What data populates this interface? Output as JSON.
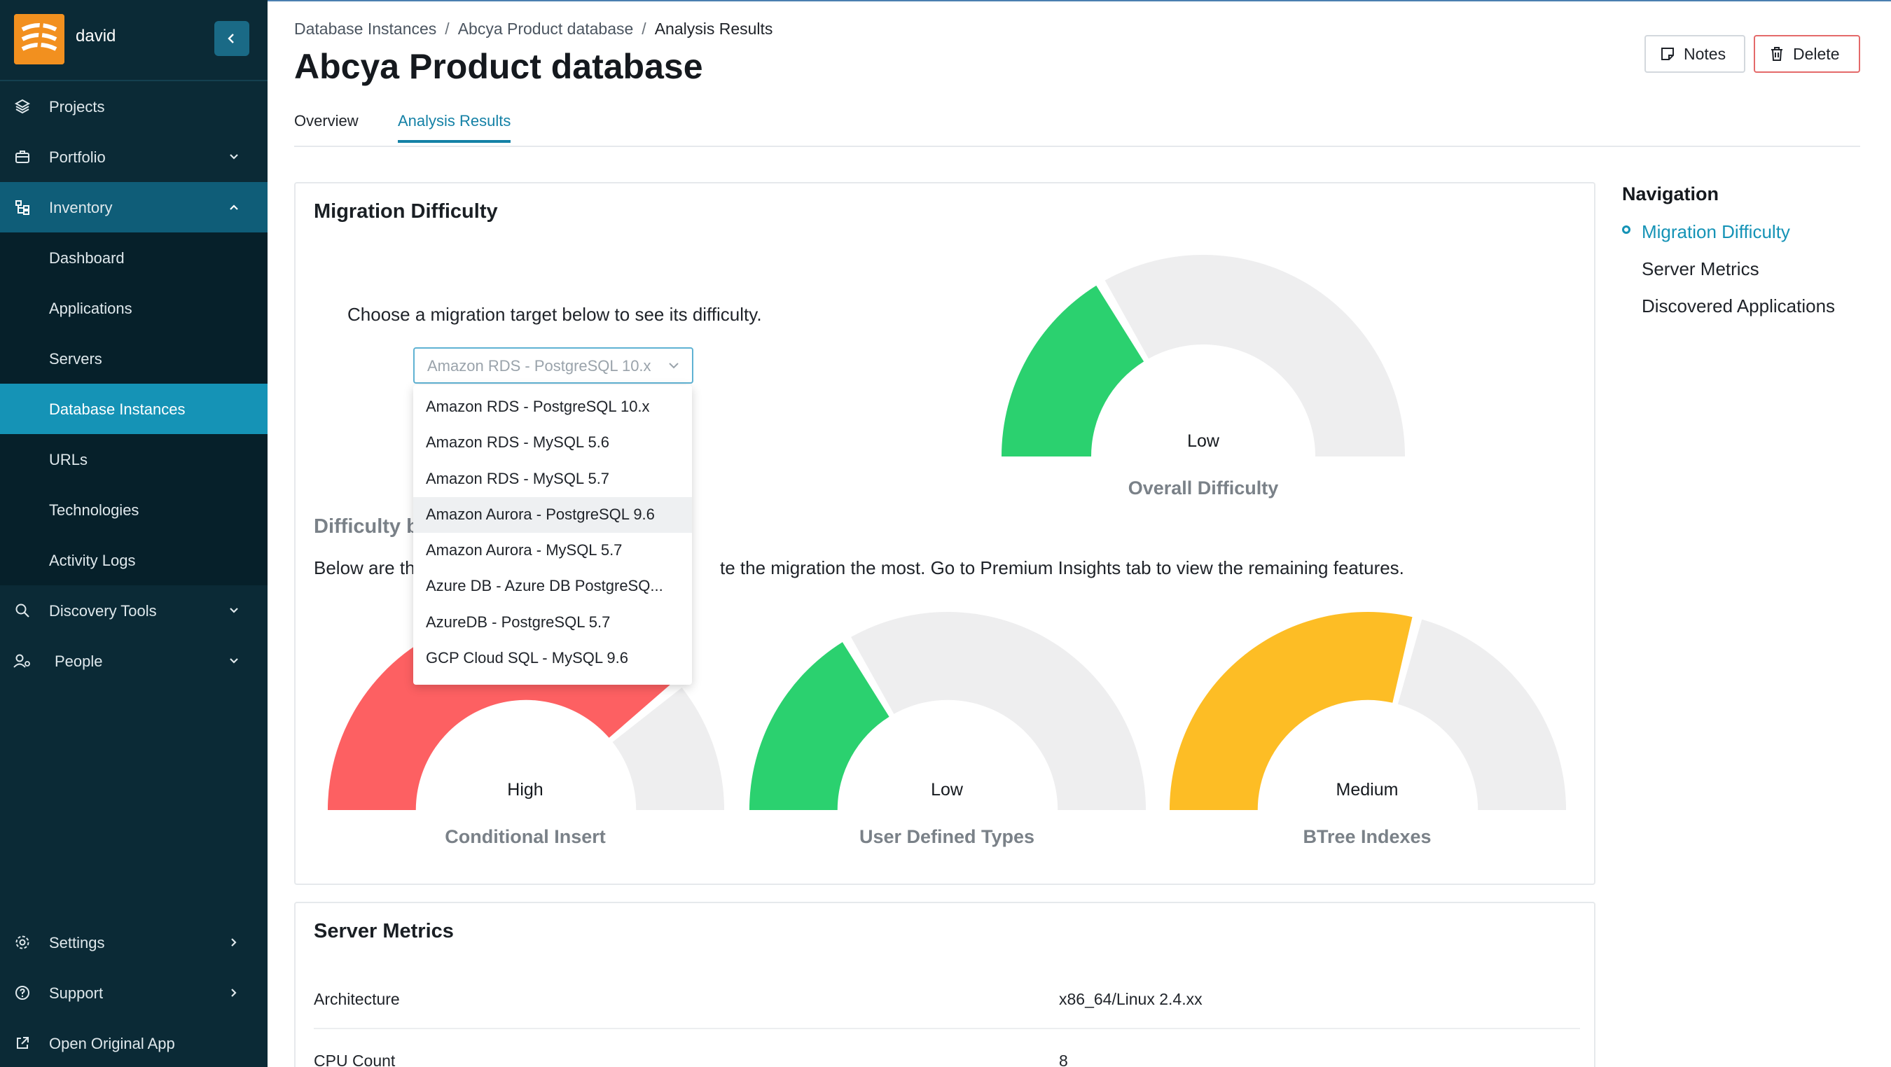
{
  "sidebar": {
    "username": "david",
    "items": [
      {
        "label": "Projects",
        "icon": "layers-icon"
      },
      {
        "label": "Portfolio",
        "icon": "briefcase-icon"
      },
      {
        "label": "Inventory",
        "icon": "hierarchy-icon"
      },
      {
        "label": "Dashboard"
      },
      {
        "label": "Applications"
      },
      {
        "label": "Servers"
      },
      {
        "label": "Database Instances"
      },
      {
        "label": "URLs"
      },
      {
        "label": "Technologies"
      },
      {
        "label": "Activity Logs"
      },
      {
        "label": "Discovery Tools",
        "icon": "search-icon"
      },
      {
        "label": "People",
        "icon": "people-icon"
      }
    ],
    "bottom": [
      {
        "label": "Settings",
        "icon": "gear-icon"
      },
      {
        "label": "Support",
        "icon": "help-icon"
      },
      {
        "label": "Open Original App",
        "icon": "external-link-icon"
      }
    ],
    "active_item": "Database Instances"
  },
  "header": {
    "breadcrumb": [
      "Database Instances",
      "Abcya Product database",
      "Analysis Results"
    ],
    "title": "Abcya Product database",
    "notes_label": "Notes",
    "delete_label": "Delete"
  },
  "tabs": [
    {
      "label": "Overview"
    },
    {
      "label": "Analysis Results",
      "active": true
    }
  ],
  "migration": {
    "title": "Migration Difficulty",
    "choose_text": "Choose a migration target below to see its difficulty.",
    "select_value": "Amazon RDS - PostgreSQL 10.x",
    "options": [
      "Amazon RDS - PostgreSQL 10.x",
      "Amazon RDS - MySQL 5.6",
      "Amazon RDS - MySQL 5.7",
      "Amazon Aurora - PostgreSQL 9.6",
      "Amazon Aurora - MySQL 5.7",
      "Azure DB - Azure DB PostgreSQ...",
      "AzureDB - PostgreSQL 5.7",
      "GCP Cloud SQL - MySQL 9.6"
    ],
    "overall": {
      "level": "Low",
      "caption": "Overall Difficulty",
      "fill": 0.33,
      "color": "#2bd16f"
    },
    "difficulty_by_title": "Difficulty by",
    "below_pre": "Below are the",
    "below_post": "te the migration the most. Go to Premium Insights tab to view the remaining features.",
    "features": [
      {
        "level": "High",
        "caption": "Conditional Insert",
        "fill": 0.78,
        "color": "#fd6062"
      },
      {
        "level": "Low",
        "caption": "User Defined Types",
        "fill": 0.33,
        "color": "#2bd16f"
      },
      {
        "level": "Medium",
        "caption": "BTree Indexes",
        "fill": 0.58,
        "color": "#fdbd25"
      }
    ]
  },
  "right_nav": {
    "title": "Navigation",
    "items": [
      "Migration Difficulty",
      "Server Metrics",
      "Discovered Applications"
    ]
  },
  "metrics": {
    "title": "Server Metrics",
    "rows": [
      {
        "key": "Architecture",
        "value": "x86_64/Linux 2.4.xx"
      },
      {
        "key": "CPU Count",
        "value": "8"
      }
    ]
  },
  "colors": {
    "accent": "#1593b6",
    "sidebar_bg": "#0b2a36",
    "gauge_track": "#eeeeef"
  }
}
